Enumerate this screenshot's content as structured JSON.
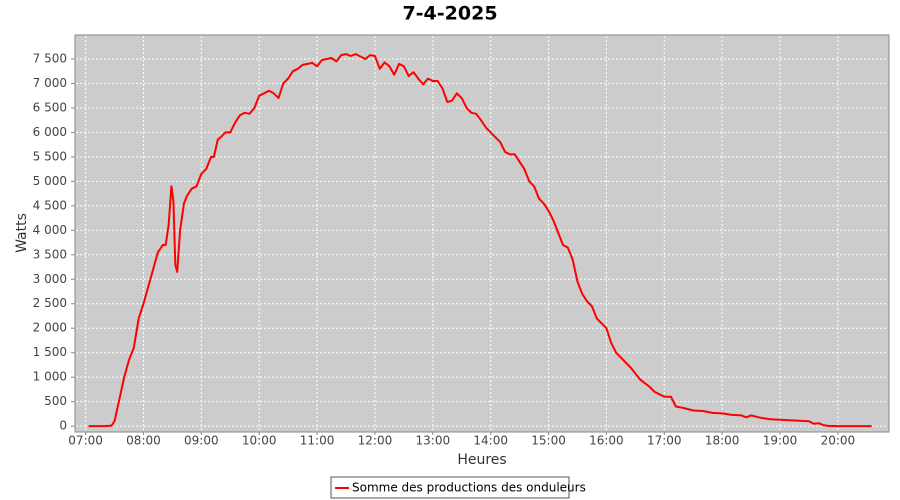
{
  "chart_data": {
    "type": "line",
    "title": "7-4-2025",
    "x_label": "Heures",
    "y_label": "Watts",
    "x": [
      "07:03",
      "07:20",
      "07:27",
      "07:30",
      "07:35",
      "07:40",
      "07:45",
      "07:50",
      "07:55",
      "08:00",
      "08:05",
      "08:10",
      "08:15",
      "08:20",
      "08:23",
      "08:26",
      "08:29",
      "08:31",
      "08:33",
      "08:35",
      "08:38",
      "08:42",
      "08:45",
      "08:50",
      "08:55",
      "09:00",
      "09:05",
      "09:10",
      "09:13",
      "09:17",
      "09:20",
      "09:25",
      "09:30",
      "09:35",
      "09:40",
      "09:45",
      "09:50",
      "09:55",
      "10:00",
      "10:05",
      "10:10",
      "10:15",
      "10:20",
      "10:25",
      "10:30",
      "10:35",
      "10:40",
      "10:45",
      "10:50",
      "10:55",
      "11:00",
      "11:05",
      "11:10",
      "11:15",
      "11:20",
      "11:25",
      "11:30",
      "11:35",
      "11:40",
      "11:45",
      "11:50",
      "11:55",
      "12:00",
      "12:05",
      "12:10",
      "12:15",
      "12:20",
      "12:25",
      "12:30",
      "12:35",
      "12:40",
      "12:45",
      "12:50",
      "12:55",
      "13:00",
      "13:05",
      "13:10",
      "13:15",
      "13:20",
      "13:25",
      "13:30",
      "13:35",
      "13:40",
      "13:45",
      "13:50",
      "13:55",
      "14:00",
      "14:05",
      "14:10",
      "14:15",
      "14:20",
      "14:25",
      "14:30",
      "14:35",
      "14:40",
      "14:45",
      "14:50",
      "14:55",
      "15:00",
      "15:05",
      "15:10",
      "15:15",
      "15:20",
      "15:25",
      "15:30",
      "15:35",
      "15:40",
      "15:45",
      "15:50",
      "15:55",
      "16:00",
      "16:05",
      "16:10",
      "16:15",
      "16:25",
      "16:35",
      "16:45",
      "16:50",
      "16:55",
      "17:00",
      "17:07",
      "17:12",
      "17:20",
      "17:30",
      "17:40",
      "17:50",
      "18:00",
      "18:10",
      "18:20",
      "18:25",
      "18:30",
      "18:40",
      "18:50",
      "19:00",
      "19:10",
      "19:20",
      "19:30",
      "19:35",
      "19:40",
      "19:45",
      "19:50",
      "20:00",
      "20:35"
    ],
    "series": [
      {
        "name": "Somme des productions des onduleurs",
        "color": "#ff0000",
        "values": [
          0,
          0,
          10,
          100,
          550,
          1000,
          1350,
          1600,
          2200,
          2500,
          2850,
          3200,
          3550,
          3700,
          3700,
          4100,
          4900,
          4600,
          3300,
          3150,
          4000,
          4550,
          4700,
          4850,
          4900,
          5150,
          5250,
          5500,
          5500,
          5850,
          5900,
          6000,
          6000,
          6200,
          6350,
          6400,
          6380,
          6500,
          6750,
          6800,
          6850,
          6800,
          6700,
          7000,
          7100,
          7250,
          7300,
          7380,
          7400,
          7420,
          7350,
          7480,
          7500,
          7520,
          7450,
          7580,
          7600,
          7560,
          7600,
          7550,
          7500,
          7580,
          7560,
          7300,
          7430,
          7350,
          7180,
          7400,
          7350,
          7150,
          7230,
          7100,
          6980,
          7100,
          7050,
          7050,
          6900,
          6620,
          6650,
          6800,
          6700,
          6500,
          6400,
          6380,
          6250,
          6100,
          6000,
          5900,
          5800,
          5600,
          5550,
          5550,
          5400,
          5250,
          5000,
          4900,
          4650,
          4550,
          4400,
          4200,
          3950,
          3700,
          3650,
          3400,
          2950,
          2700,
          2550,
          2450,
          2200,
          2100,
          2000,
          1700,
          1500,
          1400,
          1200,
          950,
          800,
          700,
          650,
          600,
          600,
          400,
          370,
          320,
          310,
          270,
          260,
          230,
          220,
          180,
          220,
          170,
          140,
          130,
          120,
          110,
          100,
          50,
          60,
          20,
          5,
          0,
          0
        ]
      }
    ],
    "xlim": [
      "06:49",
      "20:53"
    ],
    "xticks": [
      "07:00",
      "08:00",
      "09:00",
      "10:00",
      "11:00",
      "12:00",
      "13:00",
      "14:00",
      "15:00",
      "16:00",
      "17:00",
      "18:00",
      "19:00",
      "20:00"
    ],
    "ylim": [
      -120,
      7990
    ],
    "yticks": [
      0,
      500,
      {
        "value": 1000,
        "label": "1 000"
      },
      {
        "value": 1500,
        "label": "1 500"
      },
      {
        "value": 2000,
        "label": "2 000"
      },
      {
        "value": 2500,
        "label": "2 500"
      },
      {
        "value": 3000,
        "label": "3 000"
      },
      {
        "value": 3500,
        "label": "3 500"
      },
      {
        "value": 4000,
        "label": "4 000"
      },
      {
        "value": 4500,
        "label": "4 500"
      },
      {
        "value": 5000,
        "label": "5 000"
      },
      {
        "value": 5500,
        "label": "5 500"
      },
      {
        "value": 6000,
        "label": "6 000"
      },
      {
        "value": 6500,
        "label": "6 500"
      },
      {
        "value": 7000,
        "label": "7 000"
      },
      {
        "value": 7500,
        "label": "7 500"
      }
    ],
    "grid": true,
    "legend": "bottom"
  }
}
